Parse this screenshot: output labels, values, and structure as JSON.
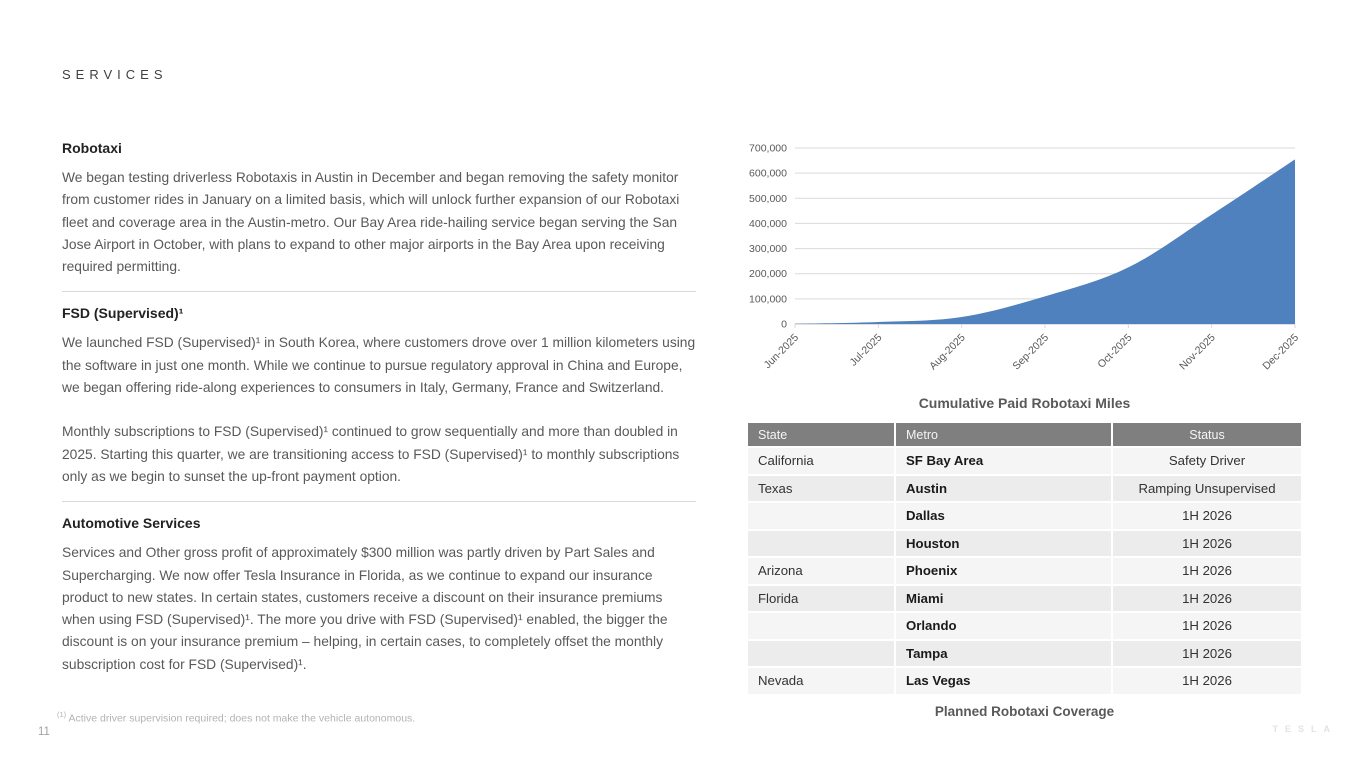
{
  "header": {
    "title": "SERVICES"
  },
  "sections": [
    {
      "heading": "Robotaxi",
      "paragraphs": [
        "We began testing driverless Robotaxis in Austin in December and began removing the safety monitor from customer rides in January on a limited basis, which will unlock further expansion of our Robotaxi fleet and coverage area in the Austin-metro. Our Bay Area ride-hailing service began serving the San Jose Airport in October, with plans to expand to other major airports in the Bay Area upon receiving required permitting."
      ]
    },
    {
      "heading": "FSD (Supervised)¹",
      "paragraphs": [
        "We launched FSD (Supervised)¹ in South Korea, where customers drove over 1 million kilometers using the software in just one month. While we continue to pursue regulatory approval in China and Europe, we began offering ride-along experiences to consumers in Italy, Germany, France and Switzerland.",
        "Monthly subscriptions to FSD (Supervised)¹ continued to grow sequentially and more than doubled in 2025. Starting this quarter, we are transitioning access to FSD (Supervised)¹ to monthly subscriptions only as we begin to sunset the up-front payment option."
      ]
    },
    {
      "heading": "Automotive Services",
      "paragraphs": [
        "Services and Other gross profit of approximately $300 million was partly driven by Part Sales and Supercharging. We now offer Tesla Insurance in Florida, as we continue to expand our insurance product to new states. In certain states, customers receive a discount on their insurance premiums when using FSD (Supervised)¹. The more you drive with FSD (Supervised)¹ enabled, the bigger the discount is on your insurance premium – helping, in certain cases, to completely offset the monthly subscription cost for FSD (Supervised)¹."
      ]
    }
  ],
  "footnote": {
    "marker": "(1)",
    "text": "Active driver supervision required; does not make the vehicle autonomous."
  },
  "page_number": "11",
  "watermark": "TESLA",
  "chart_data": {
    "type": "area",
    "title": "Cumulative Paid Robotaxi Miles",
    "x": [
      "Jun-2025",
      "Jul-2025",
      "Aug-2025",
      "Sep-2025",
      "Oct-2025",
      "Nov-2025",
      "Dec-2025"
    ],
    "values": [
      1000,
      8000,
      28000,
      110000,
      225000,
      435000,
      655000
    ],
    "ylim": [
      0,
      700000
    ],
    "yticks": [
      "0",
      "100,000",
      "200,000",
      "300,000",
      "400,000",
      "500,000",
      "600,000",
      "700,000"
    ],
    "grid": true,
    "legend": "none",
    "fill_color": "#4E81BD",
    "gridline_color": "#D9D9D9",
    "axis_label_color": "#595959"
  },
  "table": {
    "caption": "Planned Robotaxi Coverage",
    "columns": [
      "State",
      "Metro",
      "Status"
    ],
    "header_bg": "#7F7F7F",
    "rows": [
      [
        "California",
        "SF Bay Area",
        "Safety Driver"
      ],
      [
        "Texas",
        "Austin",
        "Ramping Unsupervised"
      ],
      [
        "",
        "Dallas",
        "1H 2026"
      ],
      [
        "",
        "Houston",
        "1H 2026"
      ],
      [
        "Arizona",
        "Phoenix",
        "1H 2026"
      ],
      [
        "Florida",
        "Miami",
        "1H 2026"
      ],
      [
        "",
        "Orlando",
        "1H 2026"
      ],
      [
        "",
        "Tampa",
        "1H 2026"
      ],
      [
        "Nevada",
        "Las Vegas",
        "1H 2026"
      ]
    ]
  }
}
